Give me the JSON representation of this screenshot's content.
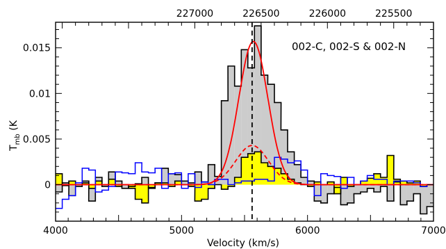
{
  "chart_data": {
    "type": "line",
    "title": "",
    "annotation": "002-C, 002-S & 002-N",
    "xlabel": "Velocity (km/s)",
    "ylabel_main": "T",
    "ylabel_sub": "mb",
    "ylabel_tail": " (K",
    "top_axis_ticks": [
      "227000",
      "226500",
      "226000",
      "225500"
    ],
    "top_axis_tick_values": [
      227000,
      226500,
      226000,
      225500
    ],
    "x_ticks": [
      "4000",
      "5000",
      "6000",
      "7000"
    ],
    "x_tick_values": [
      4000,
      5000,
      6000,
      7000
    ],
    "y_ticks": [
      "0",
      "0.005",
      "0.01",
      "0.015"
    ],
    "y_tick_values": [
      0,
      0.005,
      0.01,
      0.015
    ],
    "xlim": [
      4000,
      7000
    ],
    "ylim": [
      -0.004,
      0.0178
    ],
    "vline_x": 5560,
    "grid": false,
    "legend": "none",
    "colors": {
      "gray_fill": "#cccccc",
      "yellow_fill": "#ffff00",
      "red": "#ff0000",
      "blue": "#0000ff",
      "black": "#000000"
    },
    "series": [
      {
        "kind": "histogram-filled-gray",
        "x": [
          4000,
          4053,
          4105,
          4158,
          4211,
          4263,
          4316,
          4368,
          4421,
          4474,
          4526,
          4579,
          4632,
          4684,
          4737,
          4789,
          4842,
          4895,
          4947,
          5000,
          5053,
          5105,
          5158,
          5211,
          5263,
          5316,
          5368,
          5421,
          5474,
          5526,
          5579,
          5632,
          5684,
          5737,
          5789,
          5842,
          5895,
          5947,
          6000,
          6053,
          6105,
          6158,
          6211,
          6263,
          6316,
          6368,
          6421,
          6474,
          6526,
          6579,
          6632,
          6684,
          6737,
          6789,
          6842,
          6895,
          6947
        ],
        "values": [
          -0.0008,
          0.0002,
          -0.0012,
          -0.0002,
          0.0004,
          -0.0018,
          0.0008,
          -0.0002,
          0.0014,
          0.0004,
          -0.0004,
          -0.0002,
          0.0001,
          0.0008,
          -0.0004,
          0.0002,
          0.0018,
          0.0012,
          0.0011,
          0.0004,
          0.0002,
          0.0014,
          0.0003,
          0.0022,
          0.0009,
          0.0092,
          0.013,
          0.0108,
          0.0148,
          0.0128,
          0.0174,
          0.012,
          0.011,
          0.009,
          0.006,
          0.0036,
          0.0022,
          0.0008,
          0.0004,
          -0.0018,
          -0.002,
          -0.001,
          -0.0003,
          -0.0022,
          -0.002,
          -0.001,
          -0.0008,
          -0.0004,
          -0.0008,
          -0.0002,
          -0.0018,
          0.0003,
          -0.0022,
          -0.0018,
          -0.001,
          -0.0032,
          -0.0024
        ]
      },
      {
        "kind": "histogram-filled-yellow",
        "x": [
          4000,
          4053,
          4105,
          4158,
          4211,
          4263,
          4316,
          4368,
          4421,
          4474,
          4526,
          4579,
          4632,
          4684,
          4737,
          4789,
          4842,
          4895,
          4947,
          5000,
          5053,
          5105,
          5158,
          5211,
          5263,
          5316,
          5368,
          5421,
          5474,
          5526,
          5579,
          5632,
          5684,
          5737,
          5789,
          5842,
          5895,
          5947,
          6000,
          6053,
          6105,
          6158,
          6211,
          6263,
          6316,
          6368,
          6421,
          6474,
          6526,
          6579,
          6632,
          6684,
          6737,
          6789,
          6842,
          6895,
          6947
        ],
        "values": [
          0.0012,
          -0.0001,
          0.0004,
          0.0,
          0.0002,
          -0.0004,
          0.0004,
          0.0,
          0.0006,
          -0.0002,
          0.0,
          -0.0004,
          -0.0016,
          -0.002,
          -0.0003,
          0.0002,
          0.0002,
          -0.0002,
          0.0004,
          0.0,
          -0.0002,
          -0.0018,
          -0.0016,
          -0.0004,
          0.0,
          -0.0005,
          -0.0002,
          0.0008,
          0.003,
          0.0034,
          0.0036,
          0.0024,
          0.002,
          0.0018,
          0.0012,
          0.0006,
          0.0002,
          0.0,
          -0.0002,
          0.0003,
          0.0,
          0.0003,
          -0.001,
          0.0008,
          -0.0002,
          0.0,
          0.0004,
          0.0007,
          0.0012,
          0.0008,
          0.0032,
          0.0006,
          0.0004,
          0.0002,
          0.0004,
          -0.0002,
          0.0
        ]
      },
      {
        "kind": "histogram-blue",
        "x": [
          4000,
          4053,
          4105,
          4158,
          4211,
          4263,
          4316,
          4368,
          4421,
          4474,
          4526,
          4579,
          4632,
          4684,
          4737,
          4789,
          4842,
          4895,
          4947,
          5000,
          5053,
          5105,
          5158,
          5211,
          5263,
          5316,
          5368,
          5421,
          5474,
          5526,
          5579,
          5632,
          5684,
          5737,
          5789,
          5842,
          5895,
          5947,
          6000,
          6053,
          6105,
          6158,
          6211,
          6263,
          6316,
          6368,
          6421,
          6474,
          6526,
          6579,
          6632,
          6684,
          6737,
          6789,
          6842,
          6895,
          6947
        ],
        "values": [
          -0.0026,
          -0.0016,
          -0.0012,
          0.0002,
          0.0018,
          0.0016,
          -0.0008,
          -0.0006,
          -0.0002,
          0.0014,
          0.0013,
          0.0012,
          0.0024,
          0.0014,
          0.0013,
          0.0018,
          -0.0004,
          0.0012,
          0.0013,
          -0.0004,
          0.0012,
          -0.0003,
          0.0003,
          0.0,
          0.0006,
          0.0006,
          0.0,
          0.0002,
          0.0004,
          0.0004,
          0.0006,
          0.0006,
          0.0004,
          0.003,
          0.0028,
          0.0024,
          0.0026,
          0.0016,
          0.0,
          -0.0012,
          0.0012,
          0.001,
          0.0009,
          -0.0004,
          0.0008,
          0.0,
          0.0004,
          0.001,
          0.0006,
          0.0006,
          0.0,
          0.0004,
          0.0004,
          0.0004,
          0.0002,
          -0.0002,
          0.0
        ]
      },
      {
        "kind": "gaussian-red",
        "amplitude": 0.0157,
        "center": 5570,
        "sigma": 115
      },
      {
        "kind": "gaussian-red-dashed",
        "amplitude": 0.0043,
        "center": 5560,
        "sigma": 130
      }
    ]
  }
}
